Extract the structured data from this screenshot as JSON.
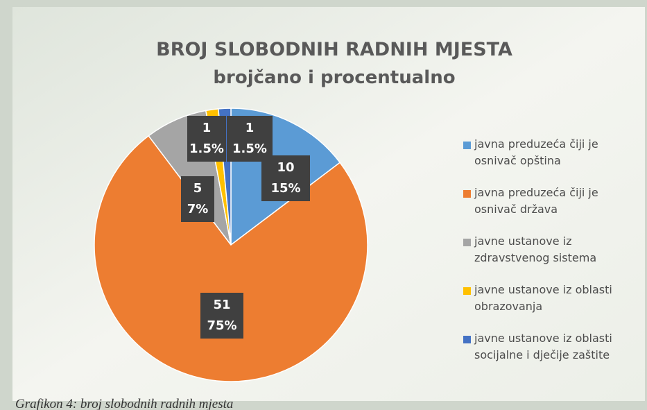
{
  "chart_data": {
    "type": "pie",
    "title": "BROJ SLOBODNIH RADNIH MJESTA",
    "subtitle": "brojčano i procentualno",
    "categories": [
      "javna preduzeća čiji je osnivač opština",
      "javna preduzeća čiji je osnivač država",
      "javne ustanove iz zdravstvenog sistema",
      "javne ustanove iz oblasti obrazovanja",
      "javne ustanove iz oblasti socijalne i dječije zaštite"
    ],
    "values": [
      10,
      51,
      5,
      1,
      1
    ],
    "percent_labels": [
      "15%",
      "75%",
      "7%",
      "1.5%",
      "1.5%"
    ],
    "colors": [
      "#5b9bd5",
      "#ed7d31",
      "#a5a5a5",
      "#ffc000",
      "#4472c4"
    ],
    "legend": "right",
    "caption": "Grafikon 4: broj slobodnih radnih mjesta"
  }
}
